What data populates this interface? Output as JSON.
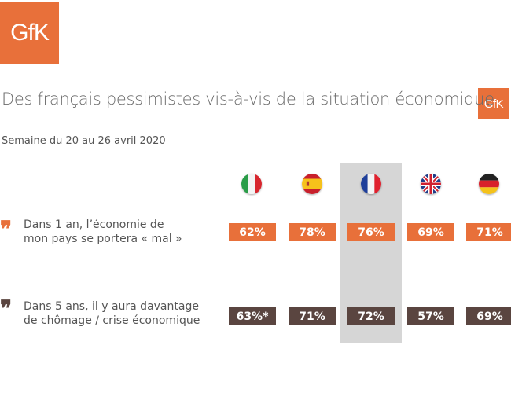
{
  "brand": {
    "logo_text": "GfK",
    "accent_color": "#e8703a",
    "dark_color": "#5a4540"
  },
  "title": "Des français pessimistes vis-à-vis de la situation économique",
  "subtitle": "Semaine du 20 au 26 avril 2020",
  "chart_data": {
    "type": "table",
    "columns": [
      {
        "country": "Italy",
        "flag": "italy-flag-icon"
      },
      {
        "country": "Spain",
        "flag": "spain-flag-icon"
      },
      {
        "country": "France",
        "flag": "france-flag-icon",
        "highlighted": true
      },
      {
        "country": "United Kingdom",
        "flag": "uk-flag-icon"
      },
      {
        "country": "Germany",
        "flag": "germany-flag-icon"
      }
    ],
    "rows": [
      {
        "label_line1": "Dans 1 an, l’économie de",
        "label_line2": "mon pays se portera « mal »",
        "values": [
          "62%",
          "78%",
          "76%",
          "69%",
          "71%"
        ],
        "color": "#e8703a"
      },
      {
        "label_line1": "Dans 5 ans, il y aura davantage",
        "label_line2": "de chômage / crise économique",
        "values": [
          "63%*",
          "71%",
          "72%",
          "57%",
          "69%"
        ],
        "color": "#5a4540"
      }
    ]
  }
}
